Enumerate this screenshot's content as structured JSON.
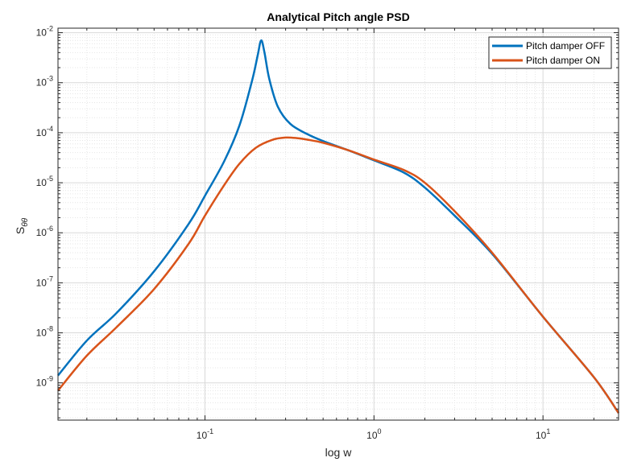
{
  "chart_data": {
    "type": "line",
    "title": "Analytical Pitch angle PSD",
    "xlabel": "log w",
    "ylabel": "S",
    "ylabel_subscript": "θθ",
    "xscale": "log",
    "yscale": "log",
    "xlim": [
      0.0135,
      28
    ],
    "ylim": [
      1.8e-10,
      0.0123
    ],
    "xticks": [
      {
        "value": 0.1,
        "base": "10",
        "exp": "-1"
      },
      {
        "value": 1,
        "base": "10",
        "exp": "0"
      },
      {
        "value": 10,
        "base": "10",
        "exp": "1"
      }
    ],
    "yticks": [
      {
        "value": 1e-09,
        "base": "10",
        "exp": "-9"
      },
      {
        "value": 1e-08,
        "base": "10",
        "exp": "-8"
      },
      {
        "value": 1e-07,
        "base": "10",
        "exp": "-7"
      },
      {
        "value": 1e-06,
        "base": "10",
        "exp": "-6"
      },
      {
        "value": 1e-05,
        "base": "10",
        "exp": "-5"
      },
      {
        "value": 0.0001,
        "base": "10",
        "exp": "-4"
      },
      {
        "value": 0.001,
        "base": "10",
        "exp": "-3"
      },
      {
        "value": 0.01,
        "base": "10",
        "exp": "-2"
      }
    ],
    "grid": true,
    "minor_grid": true,
    "legend_position": "top-right",
    "series": [
      {
        "name": "Pitch damper OFF",
        "color": "#0072BD",
        "x": [
          0.0135,
          0.02,
          0.03,
          0.05,
          0.08,
          0.1,
          0.13,
          0.16,
          0.19,
          0.205,
          0.215,
          0.225,
          0.24,
          0.27,
          0.32,
          0.4,
          0.5,
          0.7,
          1.0,
          1.5,
          2.0,
          3.0,
          5.0,
          10.0,
          20.0,
          28.0
        ],
        "y": [
          1.4e-09,
          7e-09,
          2.5e-08,
          1.7e-07,
          1.5e-06,
          5.5e-06,
          2.7e-05,
          0.00014,
          0.0011,
          0.0035,
          0.007,
          0.004,
          0.0012,
          0.00033,
          0.00015,
          9.5e-05,
          6.8e-05,
          4.5e-05,
          2.8e-05,
          1.6e-05,
          8e-06,
          2.2e-06,
          3.8e-07,
          2.1e-08,
          1.3e-09,
          2.5e-10
        ]
      },
      {
        "name": "Pitch damper ON",
        "color": "#D95319",
        "x": [
          0.0135,
          0.02,
          0.03,
          0.05,
          0.08,
          0.1,
          0.13,
          0.16,
          0.2,
          0.25,
          0.3,
          0.35,
          0.4,
          0.5,
          0.7,
          1.0,
          1.5,
          2.0,
          3.0,
          5.0,
          10.0,
          20.0,
          28.0
        ],
        "y": [
          7e-10,
          3.5e-09,
          1.3e-08,
          7.5e-08,
          6e-07,
          2.2e-06,
          9e-06,
          2.4e-05,
          5e-05,
          7.2e-05,
          8e-05,
          7.8e-05,
          7.3e-05,
          6.3e-05,
          4.5e-05,
          2.9e-05,
          1.8e-05,
          1e-05,
          2.7e-06,
          4e-07,
          2.1e-08,
          1.3e-09,
          2.5e-10
        ]
      }
    ]
  }
}
